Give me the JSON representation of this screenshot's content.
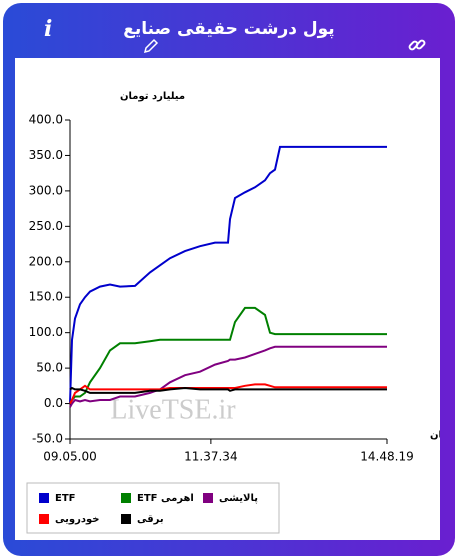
{
  "header": {
    "title": "پول درشت حقیقی صنایع",
    "info": "i"
  },
  "chart_data": {
    "type": "line",
    "y_label": "میلیارد تومان",
    "x_label": "زمان",
    "watermark": "LiveTSE.ir",
    "x": [
      32700,
      32830,
      33025,
      33350,
      33675,
      34000,
      34649,
      35299,
      35949,
      36924,
      37898,
      38548,
      39198,
      40173,
      41147,
      42122,
      42967,
      43097,
      43422,
      44072,
      44722,
      45371,
      45696,
      46021,
      46346,
      47646,
      49595,
      51544,
      53299
    ],
    "series": [
      {
        "name": "ETF",
        "color": "#0000cc",
        "values": [
          0,
          90,
          120,
          140,
          150,
          158,
          165,
          168,
          165,
          166,
          185,
          195,
          205,
          215,
          222,
          227,
          227,
          260,
          290,
          298,
          305,
          315,
          325,
          330,
          362,
          362,
          362,
          362,
          362
        ]
      },
      {
        "name": "ETF اهرمی",
        "color": "#008000",
        "values": [
          0,
          5,
          10,
          10,
          15,
          30,
          50,
          75,
          85,
          85,
          88,
          90,
          90,
          90,
          90,
          90,
          90,
          90,
          115,
          135,
          135,
          125,
          100,
          98,
          98,
          98,
          98,
          98,
          98
        ]
      },
      {
        "name": "پالایشی",
        "color": "#800080",
        "values": [
          -5,
          0,
          5,
          3,
          5,
          3,
          5,
          5,
          10,
          10,
          15,
          20,
          30,
          40,
          45,
          55,
          60,
          62,
          62,
          65,
          70,
          75,
          78,
          80,
          80,
          80,
          80,
          80,
          80
        ]
      },
      {
        "name": "خودرویی",
        "color": "#ff0000",
        "values": [
          0,
          5,
          15,
          20,
          25,
          20,
          20,
          20,
          20,
          20,
          20,
          20,
          22,
          22,
          22,
          22,
          22,
          22,
          22,
          25,
          27,
          27,
          25,
          23,
          23,
          23,
          23,
          23,
          23
        ]
      },
      {
        "name": "برقی",
        "color": "#000000",
        "values": [
          20,
          22,
          20,
          20,
          18,
          15,
          15,
          15,
          15,
          15,
          18,
          18,
          20,
          22,
          20,
          20,
          20,
          18,
          20,
          20,
          20,
          20,
          20,
          20,
          20,
          20,
          20,
          20,
          20
        ]
      }
    ],
    "xlim": [
      32700,
      53299
    ],
    "xticks": [
      {
        "value": 32700,
        "label": "09.05.00"
      },
      {
        "value": 41854,
        "label": "11.37.34"
      },
      {
        "value": 53299,
        "label": "14.48.19"
      }
    ],
    "ylim": [
      -50,
      400
    ],
    "yticks": [
      {
        "value": -50,
        "label": "-50.0"
      },
      {
        "value": 0,
        "label": "0.0"
      },
      {
        "value": 50,
        "label": "50.0"
      },
      {
        "value": 100,
        "label": "100.0"
      },
      {
        "value": 150,
        "label": "150.0"
      },
      {
        "value": 200,
        "label": "200.0"
      },
      {
        "value": 250,
        "label": "250.0"
      },
      {
        "value": 300,
        "label": "300.0"
      },
      {
        "value": 350,
        "label": "350.0"
      },
      {
        "value": 400,
        "label": "400.0"
      }
    ]
  }
}
